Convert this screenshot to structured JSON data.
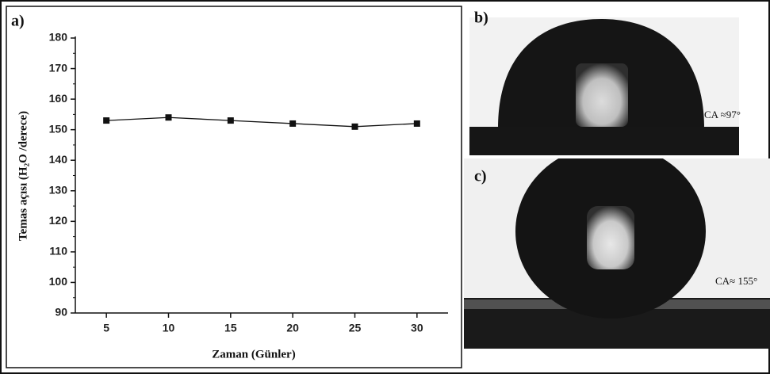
{
  "chart_data": {
    "type": "line",
    "x_label": "Zaman (Günler)",
    "y_label": "Temas açısı (H₂O /derece)",
    "x": [
      5,
      10,
      15,
      20,
      25,
      30
    ],
    "series": [
      {
        "name": null,
        "color": "#111111",
        "values": [
          153,
          154,
          153,
          152,
          151,
          152
        ]
      }
    ],
    "xlim": [
      2.5,
      32.5
    ],
    "xticks": [
      5,
      10,
      15,
      20,
      25,
      30
    ],
    "ylim": [
      90,
      180
    ],
    "yticks": [
      90,
      100,
      110,
      120,
      130,
      140,
      150,
      160,
      170,
      180
    ],
    "grid": false,
    "marker": "square"
  },
  "panel_labels": [
    "a)",
    "b)",
    "c)"
  ],
  "annotations": [
    "CA ≈97°",
    "CA≈ 155°"
  ]
}
